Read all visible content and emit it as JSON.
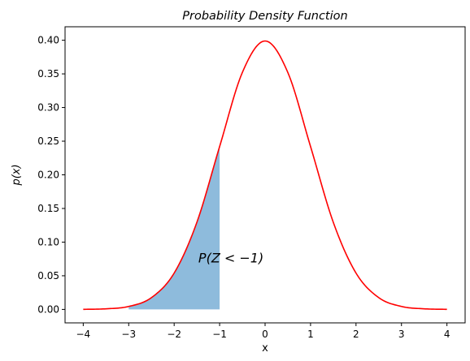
{
  "chart_data": {
    "type": "area",
    "title": "Probability Density Function",
    "xlabel": "x",
    "ylabel": "p(x)",
    "xlim": [
      -4.4,
      4.4
    ],
    "ylim": [
      -0.02,
      0.42
    ],
    "x_ticks": [
      -4,
      -3,
      -2,
      -1,
      0,
      1,
      2,
      3,
      4
    ],
    "x_tick_labels": [
      "−4",
      "−3",
      "−2",
      "−1",
      "0",
      "1",
      "2",
      "3",
      "4"
    ],
    "y_ticks": [
      0.0,
      0.05,
      0.1,
      0.15,
      0.2,
      0.25,
      0.3,
      0.35,
      0.4
    ],
    "y_tick_labels": [
      "0.00",
      "0.05",
      "0.10",
      "0.15",
      "0.20",
      "0.25",
      "0.30",
      "0.35",
      "0.40"
    ],
    "grid": false,
    "series": [
      {
        "color": "#ff0000",
        "x": [
          -4,
          -3.5,
          -3,
          -2.5,
          -2,
          -1.5,
          -1,
          -0.5,
          0,
          0.5,
          1,
          1.5,
          2,
          2.5,
          3,
          3.5,
          4
        ],
        "values": [
          0.0001,
          0.0009,
          0.0044,
          0.0175,
          0.054,
          0.1295,
          0.242,
          0.3521,
          0.3989,
          0.3521,
          0.242,
          0.1295,
          0.054,
          0.0175,
          0.0044,
          0.0009,
          0.0001
        ]
      }
    ],
    "shaded_region": {
      "x_from": -3,
      "x_to": -1,
      "color": "#8ebbdc"
    },
    "annotation": {
      "text": "P(Z < −1)",
      "x": -0.75,
      "y": 0.07
    }
  }
}
